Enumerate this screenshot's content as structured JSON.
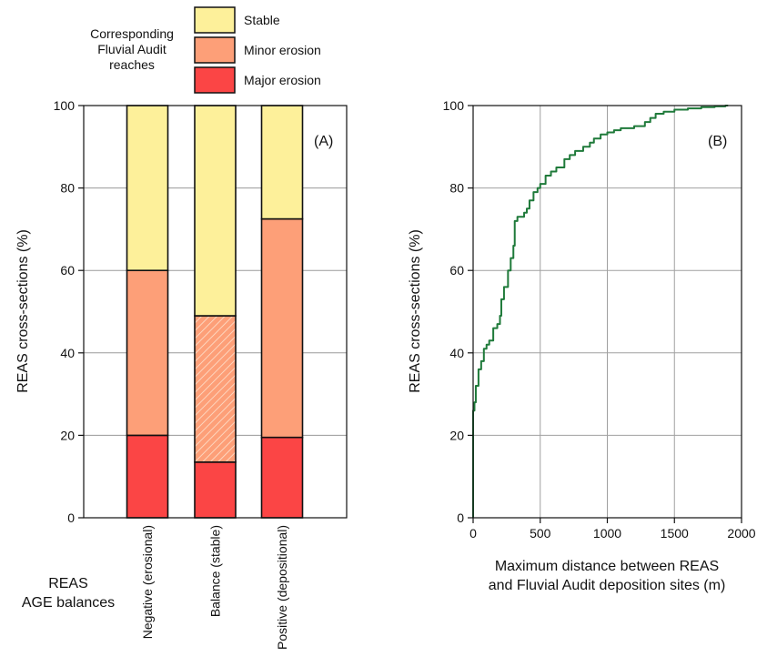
{
  "legend": {
    "title_lines": [
      "Corresponding",
      "Fluvial Audit",
      "reaches"
    ],
    "items": [
      {
        "label": "Stable",
        "color": "#fdf09a"
      },
      {
        "label": "Minor erosion",
        "color": "#fd9f78"
      },
      {
        "label": "Major erosion",
        "color": "#fb4545"
      }
    ]
  },
  "x_group_label_lines": [
    "REAS",
    "AGE balances"
  ],
  "chart_data": [
    {
      "type": "bar",
      "stacked": true,
      "panel_label": "(A)",
      "ylabel": "REAS cross-sections (%)",
      "ylim": [
        0,
        100
      ],
      "yticks": [
        0,
        20,
        40,
        60,
        80,
        100
      ],
      "grid": "horizontal",
      "categories": [
        "Negative (erosional)",
        "Balance (stable)",
        "Positive (depositional)"
      ],
      "series": [
        {
          "name": "Major erosion",
          "color": "#fb4545",
          "values": [
            20,
            13.5,
            19.5
          ]
        },
        {
          "name": "Minor erosion",
          "color": "#fd9f78",
          "values": [
            40,
            35.5,
            53
          ]
        },
        {
          "name": "Stable",
          "color": "#fdf09a",
          "values": [
            40,
            51,
            27.5
          ]
        }
      ],
      "hatched_segment": {
        "category": "Balance (stable)",
        "series": "Minor erosion"
      }
    },
    {
      "type": "line",
      "panel_label": "(B)",
      "xlabel_lines": [
        "Maximum distance between REAS",
        "and Fluvial Audit deposition sites (m)"
      ],
      "ylabel": "REAS cross-sections (%)",
      "xlim": [
        0,
        2000
      ],
      "ylim": [
        0,
        100
      ],
      "xticks": [
        0,
        500,
        1000,
        1500,
        2000
      ],
      "yticks": [
        0,
        20,
        40,
        60,
        80,
        100
      ],
      "grid": "both",
      "line_color": "#1f7a3a",
      "x": [
        0,
        0,
        10,
        20,
        40,
        60,
        80,
        100,
        120,
        150,
        180,
        200,
        210,
        230,
        260,
        280,
        300,
        310,
        330,
        350,
        380,
        400,
        420,
        450,
        480,
        500,
        540,
        580,
        620,
        680,
        720,
        760,
        820,
        870,
        900,
        950,
        1000,
        1050,
        1100,
        1200,
        1280,
        1320,
        1360,
        1420,
        1500,
        1600,
        1700,
        1800,
        1880,
        1900
      ],
      "y": [
        0,
        26,
        28,
        32,
        36,
        38,
        41,
        42,
        43,
        46,
        47,
        49,
        53,
        56,
        60,
        63,
        66,
        72,
        73,
        73,
        74,
        75,
        77,
        79,
        80,
        81,
        83,
        84,
        85,
        87,
        88,
        89,
        90,
        91,
        92,
        93,
        93.5,
        94,
        94.5,
        95,
        96,
        97,
        98,
        98.5,
        99,
        99.3,
        99.6,
        99.8,
        100,
        100
      ]
    }
  ]
}
